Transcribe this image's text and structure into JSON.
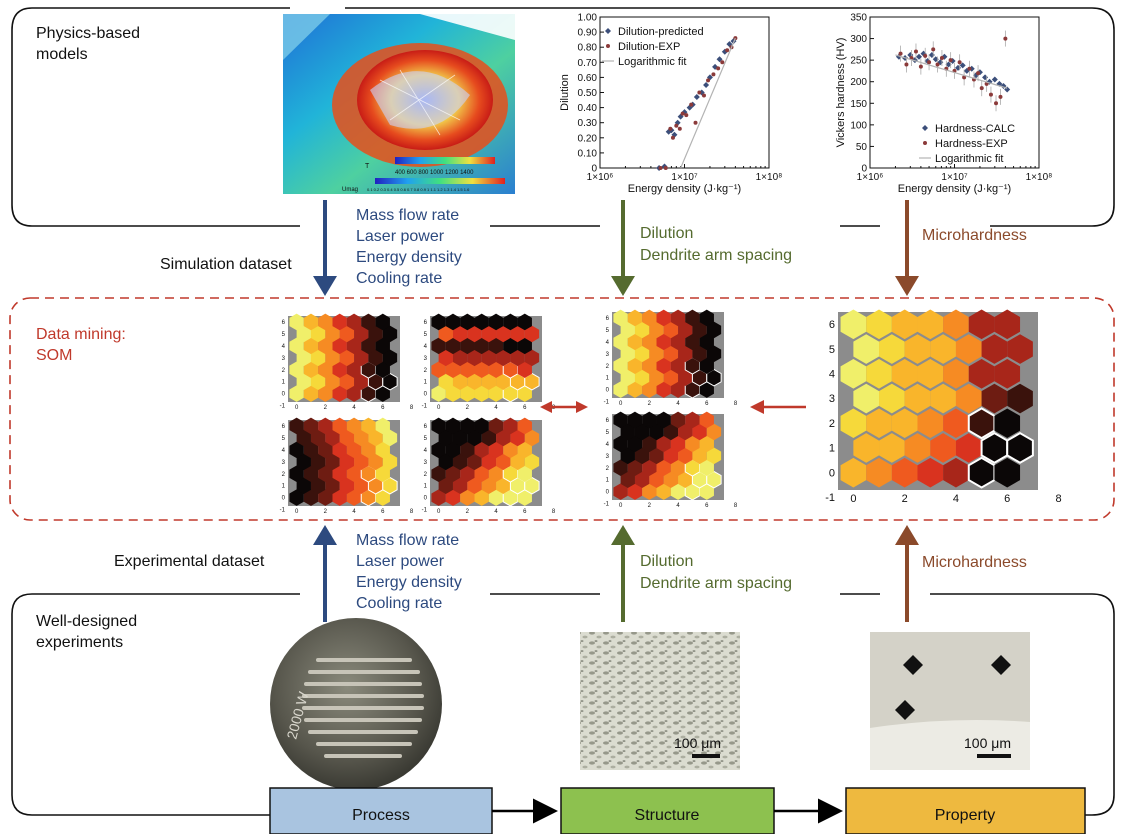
{
  "sections": {
    "physics_title_line1": "Physics-based",
    "physics_title_line2": "models",
    "experiments_title_line1": "Well-designed",
    "experiments_title_line2": "experiments",
    "simulation_dataset": "Simulation dataset",
    "experimental_dataset": "Experimental dataset",
    "data_mining_line1": "Data mining:",
    "data_mining_line2": "SOM"
  },
  "process_params": [
    "Mass flow rate",
    "Laser power",
    "Energy density",
    "Cooling rate"
  ],
  "structure_params": [
    "Dilution",
    "Dendrite arm spacing"
  ],
  "property_params": [
    "Microhardness"
  ],
  "boxes": {
    "process": "Process",
    "structure": "Structure",
    "property": "Property"
  },
  "scale_bars": {
    "structure": "100 μm",
    "property": "100 μm"
  },
  "sample_label": "2000 W",
  "simulation_legend": {
    "t_label": "T",
    "t_ticks": "400  600  800  1000 1200 1400",
    "umag_label": "Umag",
    "umag_ticks": "0.1 0.2 0.3 0.4 0.5 0.6 0.7 0.8 0.9  1  1.1 1.2 1.3 1.4 1.5 1.6"
  },
  "colors": {
    "process": "#2d4a7f",
    "structure": "#556b2f",
    "property": "#8b4a2b",
    "mining": "#c0392b",
    "box_process": "#a9c4e0",
    "box_structure": "#8dc14f",
    "box_property": "#eeb93f"
  },
  "chart_data": [
    {
      "type": "scatter",
      "xlabel": "Energy density (J·kg⁻¹)",
      "ylabel": "Dilution",
      "xscale": "log",
      "xlim": [
        1000000,
        100000000
      ],
      "ylim": [
        0,
        1
      ],
      "xticks": [
        "1×10⁶",
        "1×10⁷",
        "1×10⁸"
      ],
      "yticks": [
        "0",
        "0.10",
        "0.20",
        "0.30",
        "0.40",
        "0.50",
        "0.60",
        "0.70",
        "0.80",
        "0.90",
        "1.00"
      ],
      "legend": "top-left",
      "series": [
        {
          "name": "Dilution-predicted",
          "color": "#3c4f7a",
          "marker": "diamond",
          "x": [
            5000000,
            5800000,
            6500000,
            7000000,
            7600000,
            8300000,
            9000000,
            10000000,
            11500000,
            12500000,
            14000000,
            16000000,
            18000000,
            20000000,
            23000000,
            26000000,
            30000000,
            34000000,
            38000000
          ],
          "y": [
            0,
            0.01,
            0.24,
            0.25,
            0.22,
            0.3,
            0.34,
            0.37,
            0.4,
            0.42,
            0.47,
            0.5,
            0.55,
            0.6,
            0.67,
            0.72,
            0.77,
            0.82,
            0.84
          ]
        },
        {
          "name": "Dilution-EXP",
          "color": "#8b3a3a",
          "marker": "circle",
          "x": [
            5200000,
            6000000,
            6800000,
            7300000,
            8000000,
            8800000,
            9500000,
            10500000,
            12000000,
            13500000,
            15000000,
            17000000,
            19000000,
            22000000,
            25000000,
            28000000,
            32000000,
            36000000,
            40000000
          ],
          "y": [
            0,
            0,
            0.26,
            0.2,
            0.28,
            0.26,
            0.36,
            0.35,
            0.42,
            0.3,
            0.5,
            0.48,
            0.58,
            0.62,
            0.66,
            0.7,
            0.78,
            0.8,
            0.86
          ]
        },
        {
          "name": "Logarithmic fit",
          "color": "#b3b3b3",
          "marker": "line",
          "x": [
            9000000,
            40000000
          ],
          "y": [
            0,
            0.86
          ]
        }
      ]
    },
    {
      "type": "scatter",
      "xlabel": "Energy density (J·kg⁻¹)",
      "ylabel": "Vickers hardness (HV)",
      "xscale": "log",
      "xlim": [
        1000000,
        100000000
      ],
      "ylim": [
        0,
        350
      ],
      "xticks": [
        "1×10⁶",
        "1×10⁷",
        "1×10⁸"
      ],
      "yticks": [
        "0",
        "50",
        "100",
        "150",
        "200",
        "250",
        "300",
        "350"
      ],
      "legend": "bottom-right",
      "series": [
        {
          "name": "Hardness-CALC",
          "color": "#3c4f7a",
          "marker": "diamond",
          "x": [
            2200000,
            2600000,
            3000000,
            3400000,
            3800000,
            4300000,
            4800000,
            5400000,
            6000000,
            6800000,
            7600000,
            8500000,
            9500000,
            11000000,
            12500000,
            14000000,
            16000000,
            18000000,
            20000000,
            23000000,
            26000000,
            30000000,
            34000000,
            38000000,
            42000000
          ],
          "y": [
            258,
            255,
            262,
            250,
            258,
            265,
            248,
            262,
            252,
            245,
            258,
            240,
            248,
            232,
            238,
            225,
            230,
            215,
            222,
            210,
            200,
            205,
            195,
            190,
            182
          ]
        },
        {
          "name": "Hardness-EXP",
          "color": "#8b3a3a",
          "marker": "circle",
          "x": [
            2300000,
            2700000,
            3100000,
            3500000,
            4000000,
            4500000,
            5000000,
            5600000,
            6300000,
            7100000,
            8000000,
            9000000,
            10000000,
            11500000,
            13000000,
            15000000,
            17000000,
            19000000,
            21000000,
            24000000,
            27000000,
            31000000,
            35000000,
            40000000
          ],
          "y": [
            265,
            240,
            255,
            270,
            235,
            260,
            245,
            275,
            240,
            255,
            230,
            250,
            225,
            245,
            210,
            230,
            205,
            220,
            185,
            195,
            170,
            150,
            165,
            300
          ]
        },
        {
          "name": "Logarithmic fit",
          "color": "#b3b3b3",
          "marker": "line",
          "x": [
            2000000,
            42000000
          ],
          "y": [
            262,
            185
          ]
        }
      ]
    },
    {
      "type": "heatmap",
      "name": "SOM map 1",
      "grid": [
        7,
        7
      ],
      "xticks": [
        "0",
        "2",
        "4",
        "6",
        "8"
      ],
      "yticks": [
        "-1",
        "0",
        "1",
        "2",
        "3",
        "4",
        "5",
        "6"
      ],
      "orientation": "ramp-left-to-right-dark-right"
    },
    {
      "type": "heatmap",
      "name": "SOM map 2",
      "grid": [
        7,
        7
      ],
      "xticks": [
        "0",
        "2",
        "4",
        "6",
        "8"
      ],
      "yticks": [
        "-1",
        "0",
        "1",
        "2",
        "3",
        "4",
        "5",
        "6"
      ],
      "orientation": "horizontal-bands-bright-bottom"
    },
    {
      "type": "heatmap",
      "name": "SOM map 3",
      "grid": [
        7,
        7
      ],
      "xticks": [
        "0",
        "2",
        "4",
        "6",
        "8"
      ],
      "yticks": [
        "-1",
        "0",
        "1",
        "2",
        "3",
        "4",
        "5",
        "6"
      ],
      "orientation": "ramp-dark-left-bright-right"
    },
    {
      "type": "heatmap",
      "name": "SOM map 4",
      "grid": [
        7,
        7
      ],
      "xticks": [
        "0",
        "2",
        "4",
        "6",
        "8"
      ],
      "yticks": [
        "-1",
        "0",
        "1",
        "2",
        "3",
        "4",
        "5",
        "6"
      ],
      "orientation": "diagonal-dark-top-left-bright-right"
    },
    {
      "type": "heatmap",
      "name": "SOM dilution",
      "grid": [
        7,
        7
      ],
      "xticks": [
        "0",
        "2",
        "4",
        "6",
        "8"
      ],
      "yticks": [
        "-1",
        "0",
        "1",
        "2",
        "3",
        "4",
        "5",
        "6"
      ],
      "orientation": "ramp-left-to-right-dark-right"
    },
    {
      "type": "heatmap",
      "name": "SOM dendrite arm spacing",
      "grid": [
        7,
        7
      ],
      "xticks": [
        "0",
        "2",
        "4",
        "6",
        "8"
      ],
      "yticks": [
        "-1",
        "0",
        "1",
        "2",
        "3",
        "4",
        "5",
        "6"
      ],
      "orientation": "diagonal-dark-top-left-bright-right"
    },
    {
      "type": "heatmap",
      "name": "SOM microhardness",
      "grid": [
        7,
        7
      ],
      "xticks": [
        "0",
        "2",
        "4",
        "6",
        "8"
      ],
      "yticks": [
        "-1",
        "0",
        "1",
        "2",
        "3",
        "4",
        "5",
        "6"
      ],
      "orientation": "bright-top-left-dark-right"
    }
  ]
}
